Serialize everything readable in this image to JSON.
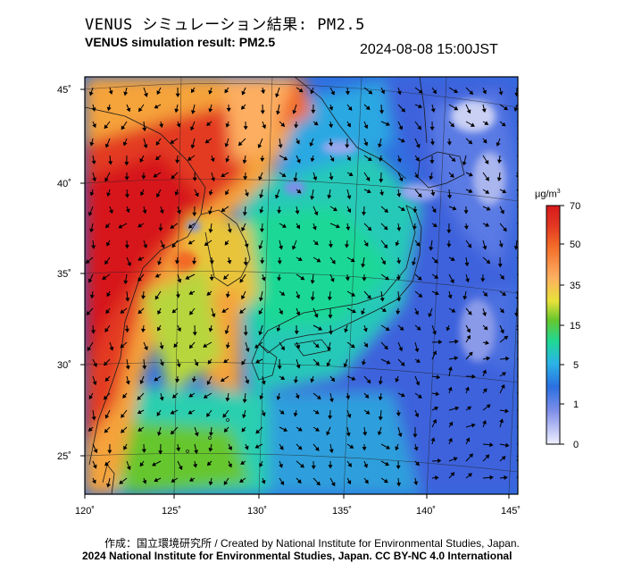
{
  "header": {
    "title_jp": "VENUS シミュレーション結果: PM2.5",
    "title_en": "VENUS simulation result: PM2.5",
    "timestamp": "2024-08-08 15:00JST"
  },
  "map": {
    "lon_ticks": [
      "120˚",
      "125˚",
      "130˚",
      "135˚",
      "140˚",
      "145˚"
    ],
    "lat_ticks": [
      "45˚",
      "40˚",
      "35˚",
      "30˚",
      "25˚"
    ],
    "lon_range": [
      120,
      145
    ],
    "lat_range": [
      23,
      46
    ]
  },
  "colorbar": {
    "unit_text": "μg/m",
    "unit_sup": "3",
    "labels": [
      "70",
      "50",
      "35",
      "15",
      "5",
      "1",
      "0"
    ],
    "colors": [
      "#d7191c",
      "#f26b28",
      "#fdae61",
      "#e8e23a",
      "#66c62e",
      "#1fd896",
      "#2bb4e6",
      "#2b6fe0",
      "#7e8ee8",
      "#f0f0ff"
    ]
  },
  "footer": {
    "credit": "作成：国立環境研究所 / Created by National Institute for Environmental Studies, Japan.",
    "copyright": "2024 National Institute for Environmental Studies, Japan. CC BY-NC 4.0 International"
  }
}
